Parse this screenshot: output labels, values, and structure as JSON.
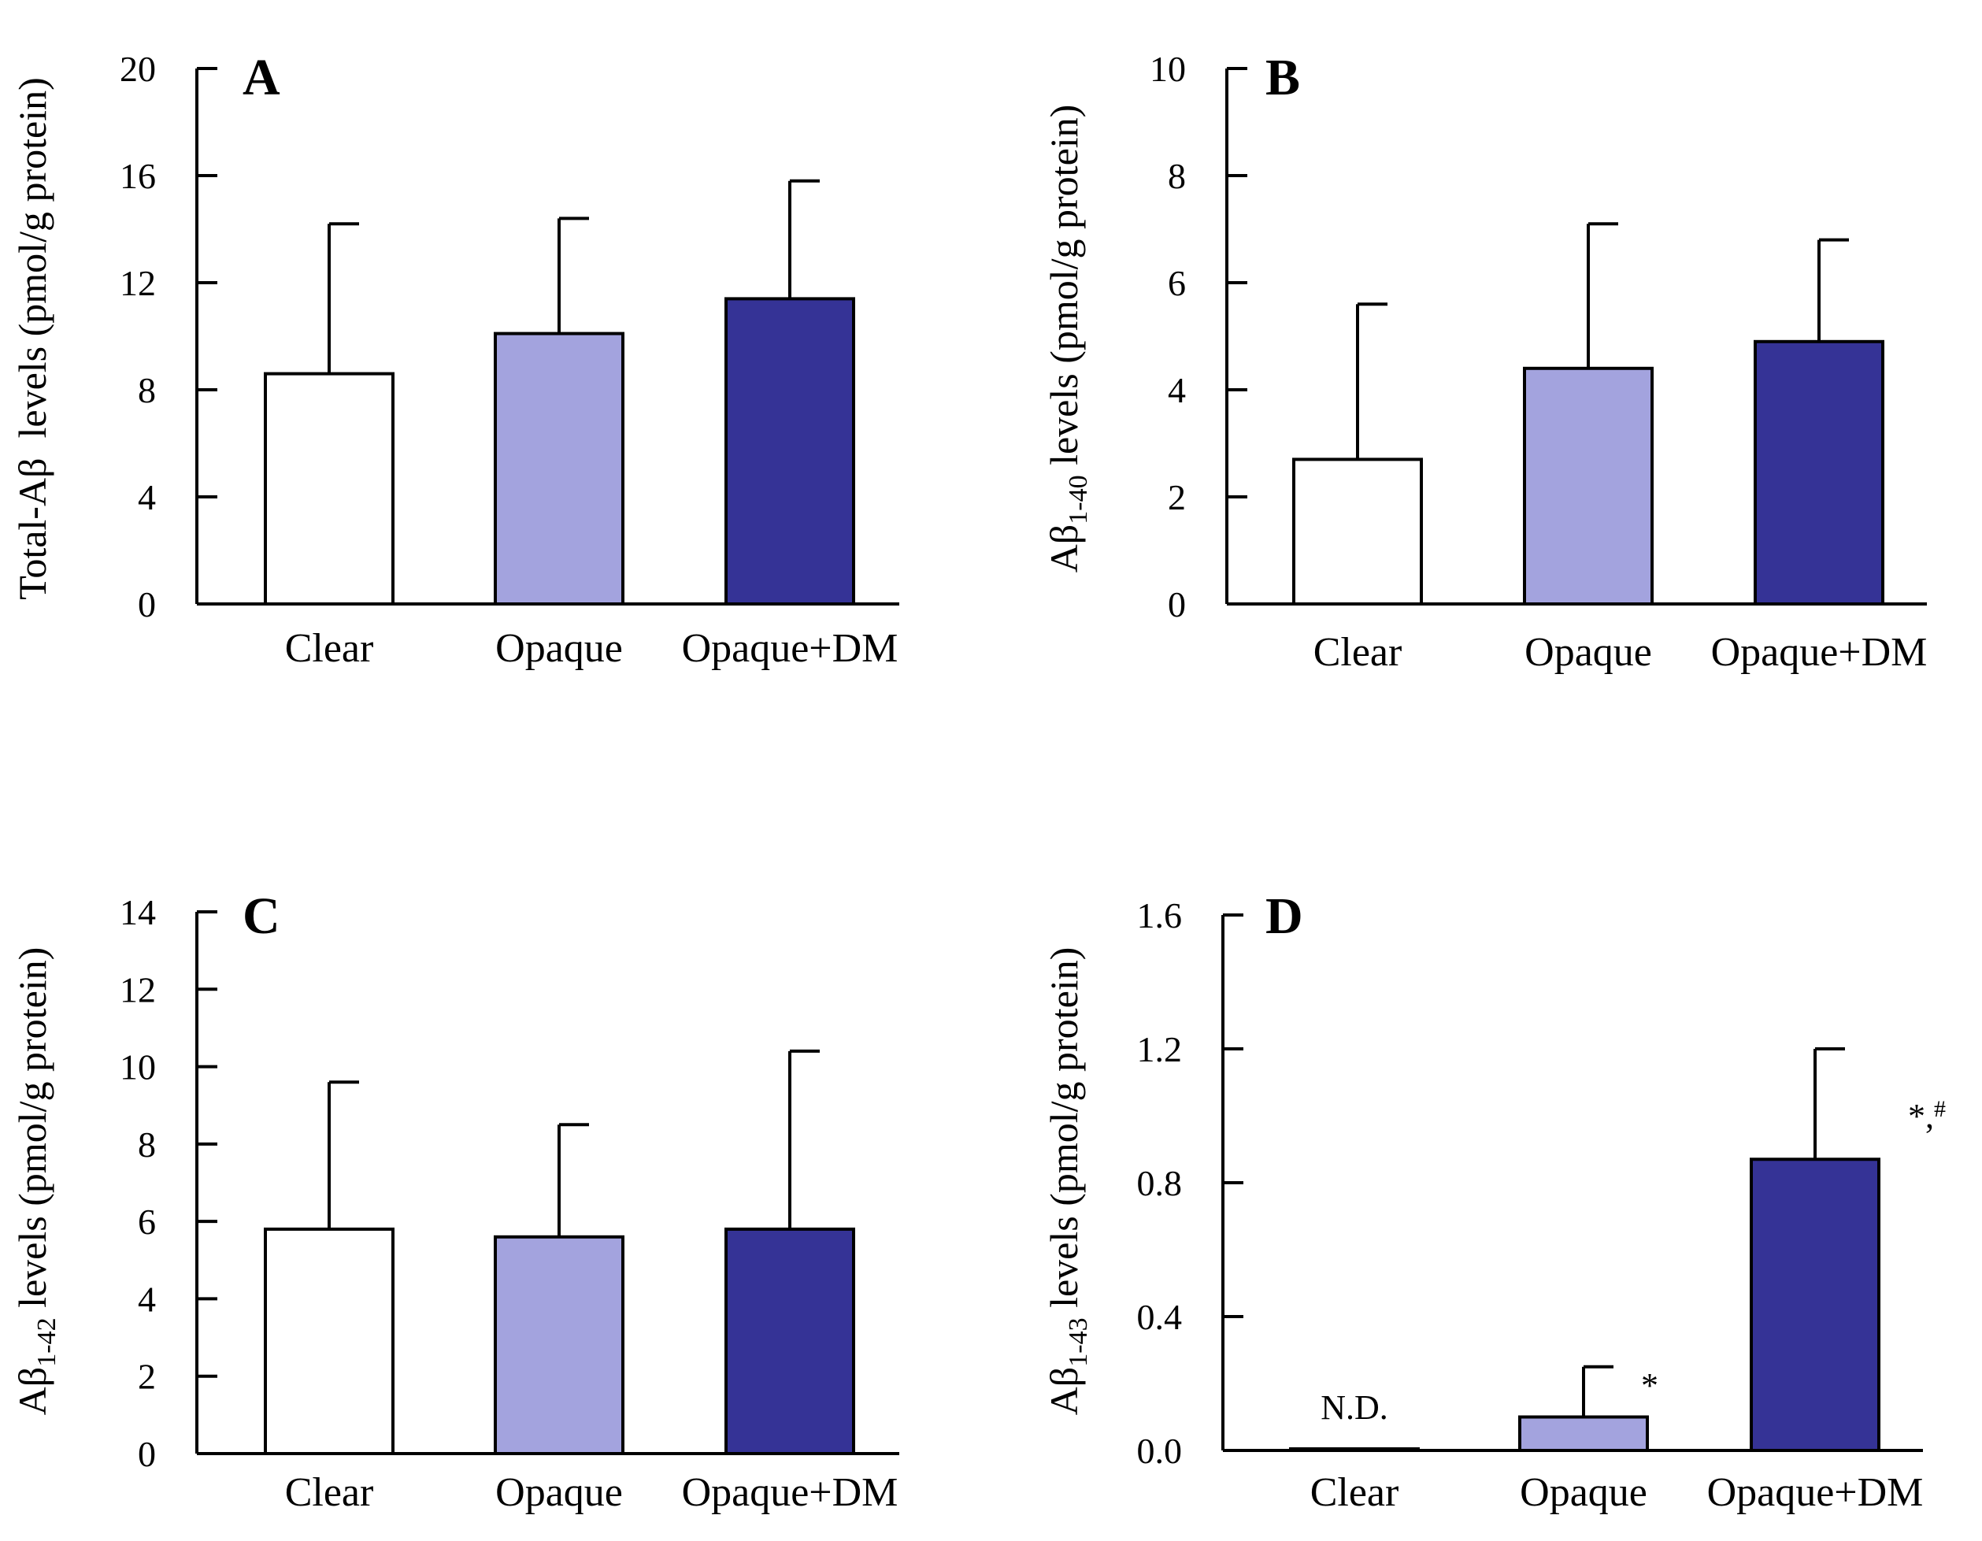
{
  "chart_data": [
    {
      "panel": "A",
      "type": "bar",
      "ylabel": "Total-Aβ  levels (pmol/g protein)",
      "ylim": [
        0,
        20
      ],
      "yticks": [
        "0",
        "4",
        "8",
        "12",
        "16",
        "20"
      ],
      "categories": [
        "Clear",
        "Opaque",
        "Opaque+DM"
      ],
      "values": [
        8.6,
        10.1,
        11.4
      ],
      "errors": [
        5.6,
        4.3,
        4.4
      ],
      "annotations": [
        "",
        "",
        ""
      ],
      "colors": [
        "#ffffff",
        "#a3a3de",
        "#353396"
      ]
    },
    {
      "panel": "B",
      "type": "bar",
      "ylabel_main": "Aβ",
      "ylabel_sub": "1-40",
      "ylabel_rest": " levels (pmol/g protein)",
      "ylim": [
        0,
        10
      ],
      "yticks": [
        "0",
        "2",
        "4",
        "6",
        "8",
        "10"
      ],
      "categories": [
        "Clear",
        "Opaque",
        "Opaque+DM"
      ],
      "values": [
        2.7,
        4.4,
        4.9
      ],
      "errors": [
        2.9,
        2.7,
        1.9
      ],
      "annotations": [
        "",
        "",
        ""
      ],
      "colors": [
        "#ffffff",
        "#a3a3de",
        "#353396"
      ]
    },
    {
      "panel": "C",
      "type": "bar",
      "ylabel_main": "Aβ",
      "ylabel_sub": "1-42",
      "ylabel_rest": " levels (pmol/g protein)",
      "ylim": [
        0,
        14
      ],
      "yticks": [
        "0",
        "2",
        "4",
        "6",
        "8",
        "10",
        "12",
        "14"
      ],
      "categories": [
        "Clear",
        "Opaque",
        "Opaque+DM"
      ],
      "values": [
        5.8,
        5.6,
        5.8
      ],
      "errors": [
        3.8,
        2.9,
        4.6
      ],
      "annotations": [
        "",
        "",
        ""
      ],
      "colors": [
        "#ffffff",
        "#a3a3de",
        "#353396"
      ]
    },
    {
      "panel": "D",
      "type": "bar",
      "ylabel_main": "Aβ",
      "ylabel_sub": "1-43",
      "ylabel_rest": " levels (pmol/g protein)",
      "ylim": [
        0,
        1.6
      ],
      "yticks": [
        "0.0",
        "0.4",
        "0.8",
        "1.2",
        "1.6"
      ],
      "categories": [
        "Clear",
        "Opaque",
        "Opaque+DM"
      ],
      "values": [
        0.0,
        0.1,
        0.87
      ],
      "errors": [
        0,
        0.15,
        0.33
      ],
      "annotations": [
        "N.D.",
        "*",
        "*,#"
      ],
      "colors": [
        "#ffffff",
        "#a3a3de",
        "#353396"
      ]
    }
  ]
}
